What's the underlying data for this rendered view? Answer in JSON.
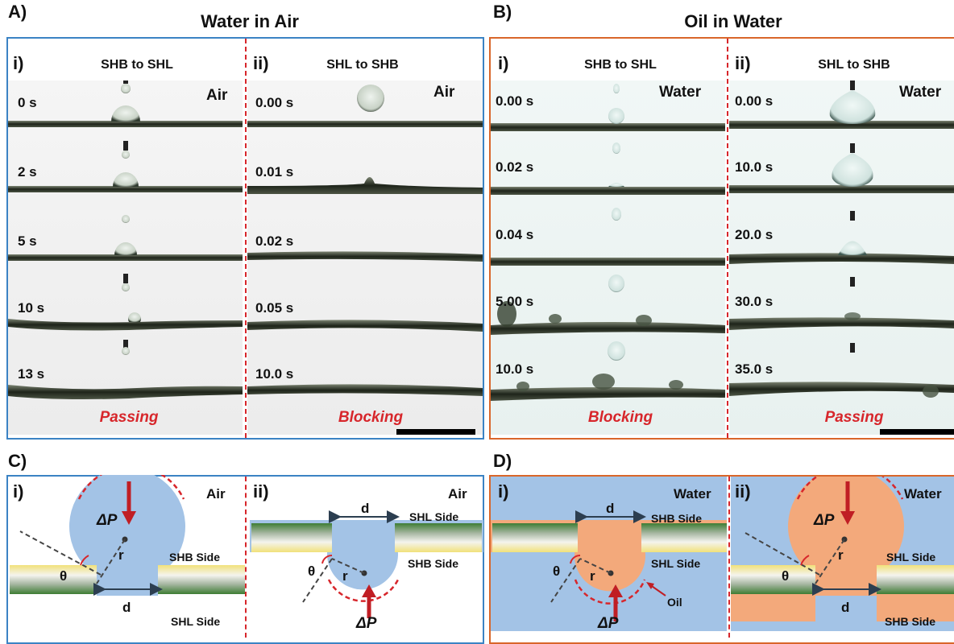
{
  "panels": {
    "A": {
      "label": "A)",
      "title": "Water in Air",
      "sub_i": {
        "label": "i)",
        "title": "SHB to SHL",
        "env": "Air",
        "times": [
          "0 s",
          "2 s",
          "5 s",
          "10 s",
          "13 s"
        ],
        "result": "Passing"
      },
      "sub_ii": {
        "label": "ii)",
        "title": "SHL to SHB",
        "env": "Air",
        "times": [
          "0.00 s",
          "0.01 s",
          "0.02 s",
          "0.05 s",
          "10.0 s"
        ],
        "result": "Blocking"
      }
    },
    "B": {
      "label": "B)",
      "title": "Oil in Water",
      "sub_i": {
        "label": "i)",
        "title": "SHB to SHL",
        "env": "Water",
        "times": [
          "0.00 s",
          "0.02 s",
          "0.04 s",
          "5.00 s",
          "10.0 s"
        ],
        "result": "Blocking"
      },
      "sub_ii": {
        "label": "ii)",
        "title": "SHL to SHB",
        "env": "Water",
        "times": [
          "0.00 s",
          "10.0 s",
          "20.0 s",
          "30.0 s",
          "35.0 s"
        ],
        "result": "Passing"
      }
    },
    "C": {
      "label": "C)",
      "sub_i": {
        "label": "i)",
        "env": "Air",
        "dp": "ΔP",
        "r": "r",
        "theta": "θ",
        "d": "d",
        "top_side": "SHB Side",
        "bottom_side": "SHL Side"
      },
      "sub_ii": {
        "label": "ii)",
        "env": "Air",
        "dp": "ΔP",
        "r": "r",
        "theta": "θ",
        "d": "d",
        "top_side": "SHL Side",
        "bottom_side": "SHB Side"
      }
    },
    "D": {
      "label": "D)",
      "sub_i": {
        "label": "i)",
        "env": "Water",
        "dp": "ΔP",
        "r": "r",
        "theta": "θ",
        "d": "d",
        "top_side": "SHB Side",
        "bottom_side": "SHL Side",
        "oil": "Oil"
      },
      "sub_ii": {
        "label": "ii)",
        "env": "Water",
        "dp": "ΔP",
        "r": "r",
        "theta": "θ",
        "d": "d",
        "top_side": "SHL Side",
        "bottom_side": "SHB Side"
      }
    }
  },
  "colors": {
    "blue_frame": "#3b83c4",
    "orange_frame": "#d9662a",
    "red": "#d7262b",
    "water": "#a3c3e6",
    "oil": "#f3a97b"
  }
}
